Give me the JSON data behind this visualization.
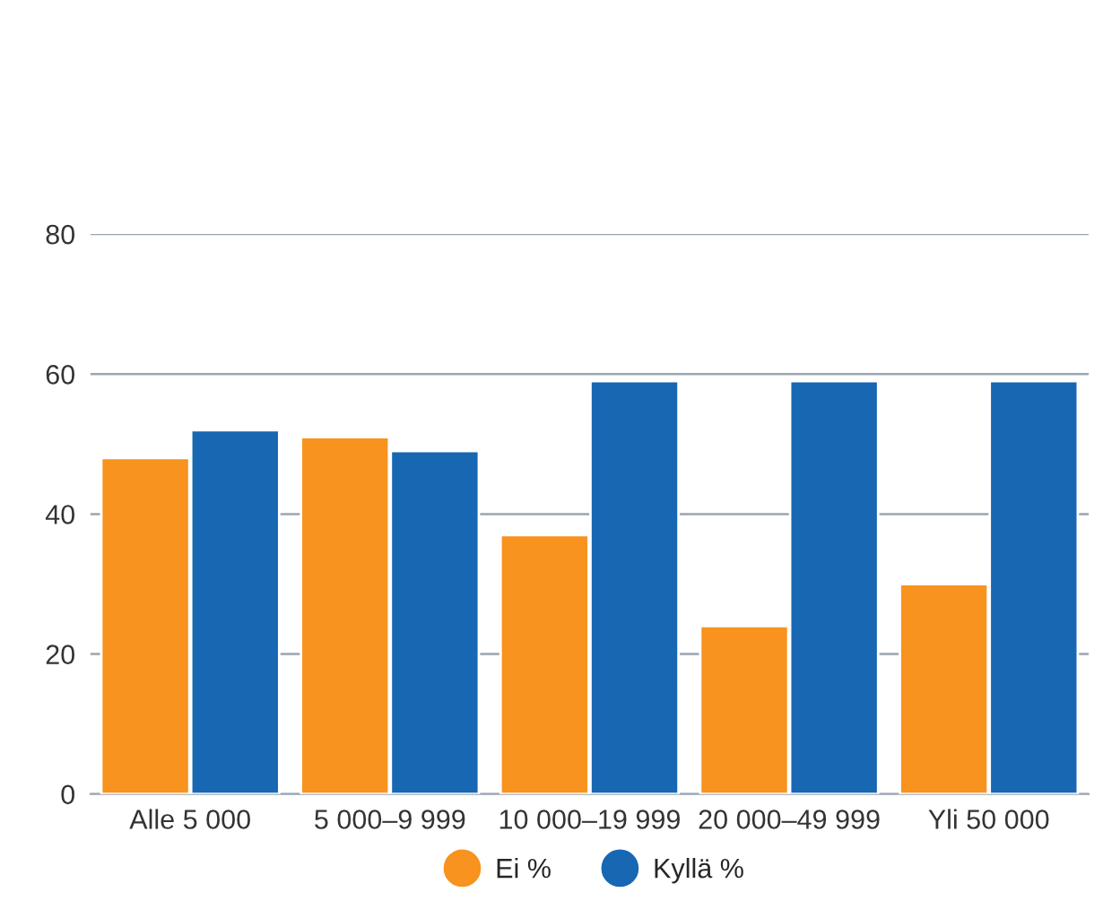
{
  "chart_data": {
    "type": "bar",
    "categories": [
      "Alle 5 000",
      "5 000–9 999",
      "10 000–19 999",
      "20 000–49 999",
      "Yli 50 000"
    ],
    "series": [
      {
        "name": "Ei %",
        "color": "#f7931e",
        "values": [
          48,
          51,
          37,
          24,
          30
        ]
      },
      {
        "name": "Kyllä %",
        "color": "#1767b3",
        "values": [
          52,
          49,
          59,
          59,
          59
        ]
      }
    ],
    "ylim": [
      0,
      80
    ],
    "yticks": [
      0,
      20,
      40,
      60,
      80
    ],
    "grid": "y",
    "legend": "bottom"
  }
}
